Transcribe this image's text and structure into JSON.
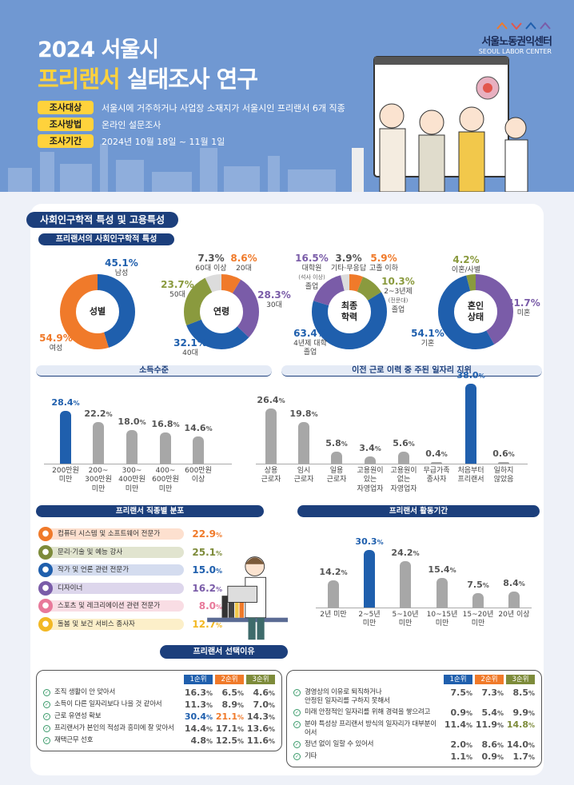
{
  "header": {
    "title_line1": "2024 서울시",
    "title_highlight": "프리랜서",
    "title_rest": " 실태조사 연구",
    "info": [
      {
        "label": "조사대상",
        "text": "서울시에 거주하거나 사업장 소재지가 서울시인 프리랜서 6개 직종"
      },
      {
        "label": "조사방법",
        "text": "온라인 설문조사"
      },
      {
        "label": "조사기간",
        "text": "2024년 10월 18일 ~ 11월 1일"
      }
    ],
    "logo": {
      "ko": "서울노동권익센터",
      "en": "SEOUL LABOR CENTER"
    }
  },
  "colors": {
    "blue": "#1f5fad",
    "orange": "#f07a2a",
    "purple": "#7a5ca8",
    "olive": "#8a9a3e",
    "grey": "#dcdcdc",
    "bar_grey": "#a7a7a7",
    "navy": "#1c3f7c",
    "highlight": "#ffd23c"
  },
  "section_title": "사회인구학적 특성 및 고용특성",
  "demographics_title": "프리랜서의 사회인구학적 특성",
  "income_title": "소득수준",
  "history_title": "이전 근로 이력 중 주된 일자리 지위",
  "occupation_title": "프리랜서 직종별 분포",
  "duration_title": "프리랜서 활동기간",
  "reasons_title": "프리랜서 선택이유",
  "chart_data": [
    {
      "id": "gender",
      "type": "pie",
      "center_label": "성별",
      "slices": [
        {
          "label": "남성",
          "value": 45.1,
          "color": "#1f5fad"
        },
        {
          "label": "여성",
          "value": 54.9,
          "color": "#f07a2a"
        }
      ]
    },
    {
      "id": "age",
      "type": "pie",
      "center_label": "연령",
      "slices": [
        {
          "label": "20대",
          "value": 8.6,
          "color": "#f07a2a"
        },
        {
          "label": "30대",
          "value": 28.3,
          "color": "#7a5ca8"
        },
        {
          "label": "40대",
          "value": 32.1,
          "color": "#1f5fad"
        },
        {
          "label": "50대",
          "value": 23.7,
          "color": "#8a9a3e"
        },
        {
          "label": "60대 이상",
          "value": 7.3,
          "color": "#dcdcdc"
        }
      ]
    },
    {
      "id": "education",
      "type": "pie",
      "center_label": "최종\n학력",
      "slices": [
        {
          "label": "고졸 이하",
          "value": 5.9,
          "color": "#f07a2a"
        },
        {
          "label": "2~3년제",
          "note": "(전문대)",
          "label2": "졸업",
          "value": 10.3,
          "color": "#8a9a3e"
        },
        {
          "label": "4년제 대학\n졸업",
          "value": 63.4,
          "color": "#1f5fad"
        },
        {
          "label": "대학원",
          "note": "(석사 이상)",
          "label2": "졸업",
          "value": 16.5,
          "color": "#7a5ca8"
        },
        {
          "label": "기타·무응답",
          "value": 3.9,
          "color": "#dcdcdc"
        }
      ]
    },
    {
      "id": "marital",
      "type": "pie",
      "center_label": "혼인\n상태",
      "slices": [
        {
          "label": "미혼",
          "value": 41.7,
          "color": "#7a5ca8"
        },
        {
          "label": "기혼",
          "value": 54.1,
          "color": "#1f5fad"
        },
        {
          "label": "이혼/사별",
          "value": 4.2,
          "color": "#8a9a3e"
        }
      ]
    },
    {
      "id": "income",
      "type": "bar",
      "unit": "%",
      "categories": [
        "200만원\n미만",
        "200~\n300만원\n미만",
        "300~\n400만원\n미만",
        "400~\n600만원\n미만",
        "600만원\n이상"
      ],
      "values": [
        28.4,
        22.2,
        18.0,
        16.8,
        14.6
      ],
      "highlight": 0
    },
    {
      "id": "history",
      "type": "bar",
      "unit": "%",
      "categories": [
        "상용\n근로자",
        "임시\n근로자",
        "일용\n근로자",
        "고용원이\n있는\n자영업자",
        "고용원이\n없는\n자영업자",
        "무급가족\n종사자",
        "처음부터\n프리랜서",
        "일하지\n않았음"
      ],
      "values": [
        26.4,
        19.8,
        5.8,
        3.4,
        5.6,
        0.4,
        38.0,
        0.6
      ],
      "highlight": 6
    },
    {
      "id": "duration",
      "type": "bar",
      "unit": "%",
      "categories": [
        "2년 미만",
        "2~5년\n미만",
        "5~10년\n미만",
        "10~15년\n미만",
        "15~20년\n미만",
        "20년 이상"
      ],
      "values": [
        14.2,
        30.3,
        24.2,
        15.4,
        7.5,
        8.4
      ],
      "highlight": 1
    }
  ],
  "occupations": [
    {
      "label": "컴퓨터 시스템 및 소프트웨어 전문가",
      "value": "22.9",
      "icon": "computer-icon",
      "color": "#f07a2a",
      "bg": "#fde0cf"
    },
    {
      "label": "문리·기술 및 예능 강사",
      "value": "25.1",
      "icon": "classroom-icon",
      "color": "#7d8b3a",
      "bg": "#e1e4cf"
    },
    {
      "label": "작가 및 언론 관련 전문가",
      "value": "15.0",
      "icon": "writing-icon",
      "color": "#1f5fad",
      "bg": "#d4dcef"
    },
    {
      "label": "디자이너",
      "value": "16.2",
      "icon": "design-icon",
      "color": "#7a5ca8",
      "bg": "#ddd6ec"
    },
    {
      "label": "스포츠 및 레크리에이션 관련 전문가",
      "value": "8.0",
      "icon": "sports-icon",
      "color": "#e8799a",
      "bg": "#f9dde4"
    },
    {
      "label": "돌봄 및 보건 서비스 종사자",
      "value": "12.7",
      "icon": "care-icon",
      "color": "#f2b824",
      "bg": "#fcefc9"
    }
  ],
  "reasons": {
    "rank_headers": [
      "1순위",
      "2순위",
      "3순위"
    ],
    "rank_colors": [
      "#1f5fad",
      "#f07a2a",
      "#7d8b3a"
    ],
    "left": [
      {
        "label": "조직 생활이 안 맞아서",
        "values": [
          "16.3",
          "6.5",
          "4.6"
        ]
      },
      {
        "label": "소득이 다른 일자리보다 나을 것 같아서",
        "values": [
          "11.3",
          "8.9",
          "7.0"
        ]
      },
      {
        "label": "근로 유연성 확보",
        "values": [
          "30.4",
          "21.1",
          "14.3"
        ],
        "highlight": [
          0,
          1
        ]
      },
      {
        "label": "프리랜서가 본인의 적성과 흥미에 잘 맞아서",
        "values": [
          "14.4",
          "17.1",
          "13.6"
        ]
      },
      {
        "label": "재택근무 선호",
        "values": [
          "4.8",
          "12.5",
          "11.6"
        ]
      }
    ],
    "right": [
      {
        "label": "경영상의 이유로 퇴직하거나\n안정된 일자리를 구하지 못해서",
        "values": [
          "7.5",
          "7.3",
          "8.5"
        ]
      },
      {
        "label": "미래 안정적인 일자리를 위해 경력을 쌓으려고",
        "values": [
          "0.9",
          "5.4",
          "9.9"
        ]
      },
      {
        "label": "분야 특성상 프리랜서 방식의 일자리가 대부분이어서",
        "values": [
          "11.4",
          "11.9",
          "14.8"
        ],
        "highlight": [
          2
        ]
      },
      {
        "label": "정년 없이 일할 수 있어서",
        "values": [
          "2.0",
          "8.6",
          "14.0"
        ]
      },
      {
        "label": "기타",
        "values": [
          "1.1",
          "0.9",
          "1.7"
        ]
      }
    ]
  }
}
